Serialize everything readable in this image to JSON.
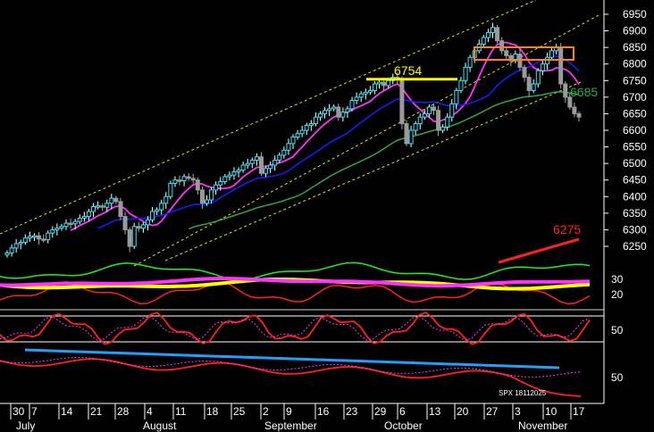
{
  "chart_data": {
    "type": "candlestick",
    "symbol_tag": "SPX 18112025",
    "y_axis": {
      "ticks": [
        6950,
        6900,
        6850,
        6800,
        6750,
        6700,
        6650,
        6600,
        6550,
        6500,
        6450,
        6400,
        6350,
        6300,
        6250
      ],
      "ylim": [
        6205,
        6985
      ]
    },
    "x_axis": {
      "day_ticks": [
        "30",
        "7",
        "14",
        "21",
        "28",
        "4",
        "11",
        "18",
        "25",
        "2",
        "9",
        "16",
        "23",
        "29",
        "6",
        "13",
        "20",
        "27",
        "3",
        "10",
        "17"
      ],
      "months": [
        "July",
        "August",
        "September",
        "October",
        "November"
      ]
    },
    "annotations": {
      "resistance_label": "6754",
      "support_label": "6685",
      "target_label": "6275",
      "resistance_color": "#ffff00",
      "support_color": "#2ea84a",
      "target_color": "#ff2020",
      "box_color": "#ff7f27"
    },
    "price_series": {
      "closes": [
        6230,
        6245,
        6258,
        6262,
        6275,
        6280,
        6282,
        6272,
        6270,
        6290,
        6300,
        6305,
        6310,
        6320,
        6318,
        6325,
        6335,
        6340,
        6355,
        6370,
        6372,
        6368,
        6380,
        6395,
        6385,
        6340,
        6300,
        6250,
        6310,
        6305,
        6315,
        6330,
        6355,
        6360,
        6380,
        6400,
        6440,
        6450,
        6448,
        6460,
        6455,
        6450,
        6420,
        6380,
        6390,
        6420,
        6435,
        6445,
        6460,
        6465,
        6475,
        6480,
        6495,
        6500,
        6510,
        6520,
        6470,
        6485,
        6495,
        6510,
        6525,
        6540,
        6560,
        6580,
        6590,
        6600,
        6615,
        6620,
        6640,
        6650,
        6660,
        6665,
        6670,
        6640,
        6655,
        6665,
        6690,
        6700,
        6710,
        6715,
        6720,
        6740,
        6745,
        6735,
        6750,
        6760,
        6755,
        6620,
        6560,
        6600,
        6620,
        6640,
        6650,
        6670,
        6660,
        6600,
        6610,
        6640,
        6680,
        6720,
        6750,
        6790,
        6820,
        6840,
        6860,
        6880,
        6895,
        6910,
        6870,
        6840,
        6825,
        6810,
        6830,
        6790,
        6760,
        6720,
        6740,
        6780,
        6800,
        6820,
        6840,
        6850,
        6740,
        6700,
        6670,
        6650,
        6640
      ],
      "sma_magenta_color": "#ff33ff",
      "sma_blue_color": "#1a1aff",
      "sma_green_color": "#2ea84a",
      "channel_color": "#e6e600"
    },
    "lower_panel_1": {
      "ticks": [
        "30",
        "20"
      ],
      "series_colors": [
        "#ff33ff",
        "#ffff00",
        "#22ee22",
        "#ff2020"
      ]
    },
    "lower_panel_2": {
      "ticks": [
        "50"
      ],
      "series_colors": [
        "#ff2020",
        "#ff33ff"
      ]
    },
    "lower_panel_3": {
      "ticks": [
        "50"
      ],
      "trendline_color": "#1ea0ff",
      "series_colors": [
        "#ff2020",
        "#ff33ff"
      ]
    }
  }
}
